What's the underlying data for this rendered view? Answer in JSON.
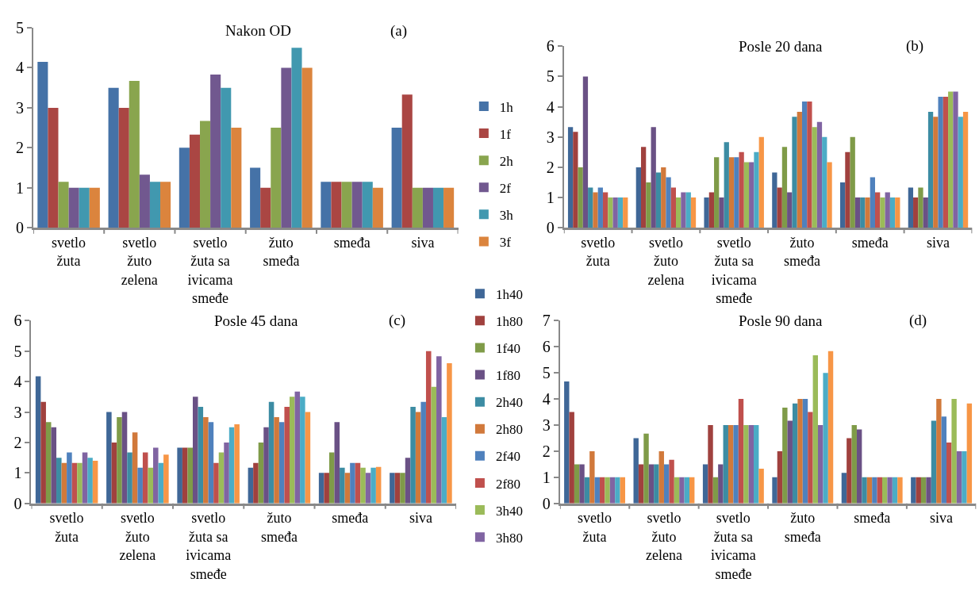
{
  "chart_data": [
    {
      "type": "bar",
      "title": "Nakon OD",
      "annotations": [
        "(a)"
      ],
      "categories": [
        "svetlo žuta",
        "svetlo žuto zelena",
        "svetlo žuta sa ivicama smeđe",
        "žuto smeđa",
        "smeđa",
        "siva"
      ],
      "ylim": [
        0,
        5
      ],
      "yticks": [
        0,
        1,
        2,
        3,
        4,
        5
      ],
      "legend": "right",
      "series": [
        {
          "name": "1h",
          "color": "#4572a7",
          "values": [
            4.15,
            3.5,
            2,
            1.5,
            1.15,
            2.5
          ]
        },
        {
          "name": "1f",
          "color": "#aa4643",
          "values": [
            3,
            3,
            2.33,
            1,
            1.15,
            3.33
          ]
        },
        {
          "name": "2h",
          "color": "#89a54e",
          "values": [
            1.15,
            3.67,
            2.67,
            2.5,
            1.15,
            1
          ]
        },
        {
          "name": "2f",
          "color": "#71588f",
          "values": [
            1,
            1.33,
            3.83,
            4,
            1.15,
            1
          ]
        },
        {
          "name": "3h",
          "color": "#4198af",
          "values": [
            1,
            1.15,
            3.5,
            4.5,
            1.15,
            1
          ]
        },
        {
          "name": "3f",
          "color": "#db843d",
          "values": [
            1,
            1.15,
            2.5,
            4,
            1,
            1
          ]
        }
      ]
    },
    {
      "type": "bar",
      "title": "Posle 20 dana",
      "annotations": [
        "(b)"
      ],
      "categories": [
        "svetlo žuta",
        "svetlo žuto zelena",
        "svetlo žuta sa ivicama smeđe",
        "žuto smeđa",
        "smeđa",
        "siva"
      ],
      "ylim": [
        0,
        6
      ],
      "yticks": [
        0,
        1,
        2,
        3,
        4,
        5,
        6
      ],
      "series": [
        {
          "color": "#3f6797",
          "values": [
            3.33,
            2,
            1,
            1.83,
            1.5,
            1.33
          ]
        },
        {
          "color": "#a0413e",
          "values": [
            3.17,
            2.67,
            1.17,
            1.33,
            2.5,
            1
          ]
        },
        {
          "color": "#7f9b48",
          "values": [
            2,
            1.5,
            2.33,
            2.67,
            3,
            1.33
          ]
        },
        {
          "color": "#6a5185",
          "values": [
            5,
            3.33,
            1,
            1.17,
            1,
            1
          ]
        },
        {
          "color": "#3c8ca3",
          "values": [
            1.33,
            1.83,
            2.83,
            3.67,
            1,
            3.83
          ]
        },
        {
          "color": "#d1793b",
          "values": [
            1.17,
            2,
            2.33,
            3.83,
            1,
            3.67
          ]
        },
        {
          "color": "#4f81bd",
          "values": [
            1.33,
            1.67,
            2.33,
            4.17,
            1.67,
            4.33
          ]
        },
        {
          "color": "#c0504d",
          "values": [
            1.17,
            1.33,
            2.5,
            4.17,
            1.17,
            4.33
          ]
        },
        {
          "color": "#9bbb59",
          "values": [
            1,
            1,
            2.17,
            3.33,
            1,
            4.5
          ]
        },
        {
          "color": "#8064a2",
          "values": [
            1,
            1.17,
            2.17,
            3.5,
            1.17,
            4.5
          ]
        },
        {
          "color": "#4bacc6",
          "values": [
            1,
            1.17,
            2.5,
            3,
            1,
            3.67
          ]
        },
        {
          "color": "#f79646",
          "values": [
            1,
            1,
            3,
            2.17,
            1,
            3.83
          ]
        }
      ]
    },
    {
      "type": "bar",
      "title": "Posle 45 dana",
      "annotations": [
        "(c)"
      ],
      "categories": [
        "svetlo žuta",
        "svetlo žuto zelena",
        "svetlo žuta sa ivicama smeđe",
        "žuto smeđa",
        "smeđa",
        "siva"
      ],
      "ylim": [
        0,
        6
      ],
      "yticks": [
        0,
        1,
        2,
        3,
        4,
        5,
        6
      ],
      "legend": "right",
      "series": [
        {
          "name": "1h40",
          "color": "#3f6797",
          "values": [
            4.17,
            3,
            1.83,
            1.17,
            1,
            1
          ]
        },
        {
          "name": "1h80",
          "color": "#a0413e",
          "values": [
            3.33,
            2,
            1.83,
            1.33,
            1,
            1
          ]
        },
        {
          "name": "1f40",
          "color": "#7f9b48",
          "values": [
            2.67,
            2.83,
            1.83,
            2,
            1.67,
            1
          ]
        },
        {
          "name": "1f80",
          "color": "#6a5185",
          "values": [
            2.5,
            3,
            3.5,
            2.5,
            2.67,
            1.5
          ]
        },
        {
          "name": "2h40",
          "color": "#3c8ca3",
          "values": [
            1.5,
            1.67,
            3.17,
            3.33,
            1.17,
            3.17
          ]
        },
        {
          "name": "2h80",
          "color": "#d1793b",
          "values": [
            1.33,
            2.33,
            2.83,
            2.83,
            1,
            3
          ]
        },
        {
          "name": "2f40",
          "color": "#4f81bd",
          "values": [
            1.67,
            1.17,
            2.67,
            2.67,
            1.33,
            3.33
          ]
        },
        {
          "name": "2f80",
          "color": "#c0504d",
          "values": [
            1.33,
            1.67,
            1.33,
            3.17,
            1.33,
            5
          ]
        },
        {
          "name": "3h40",
          "color": "#9bbb59",
          "values": [
            1.33,
            1.17,
            1.67,
            3.5,
            1.17,
            3.83
          ]
        },
        {
          "name": "3h80",
          "color": "#8064a2",
          "values": [
            1.67,
            1.83,
            2,
            3.67,
            1,
            4.83
          ]
        },
        {
          "color": "#4bacc6",
          "values": [
            1.5,
            1.33,
            2.5,
            3.5,
            1.17,
            2.83
          ]
        },
        {
          "color": "#f79646",
          "values": [
            1.4,
            1.6,
            2.6,
            3,
            1.2,
            4.6
          ]
        }
      ]
    },
    {
      "type": "bar",
      "title": "Posle 90 dana",
      "annotations": [
        "(d)"
      ],
      "categories": [
        "svetlo žuta",
        "svetlo žuto zelena",
        "svetlo žuta sa ivicama smeđe",
        "žuto smeđa",
        "smeđa",
        "siva"
      ],
      "ylim": [
        0,
        7
      ],
      "yticks": [
        0,
        1,
        2,
        3,
        4,
        5,
        6,
        7
      ],
      "series": [
        {
          "color": "#3f6797",
          "values": [
            4.67,
            2.5,
            1.5,
            1,
            1.17,
            1
          ]
        },
        {
          "color": "#a0413e",
          "values": [
            3.5,
            1.5,
            3,
            2,
            2.5,
            1
          ]
        },
        {
          "color": "#7f9b48",
          "values": [
            1.5,
            2.67,
            1,
            3.67,
            3,
            1
          ]
        },
        {
          "color": "#6a5185",
          "values": [
            1.5,
            1.5,
            1.5,
            3.17,
            2.83,
            1
          ]
        },
        {
          "color": "#3c8ca3",
          "values": [
            1,
            1.5,
            3,
            3.83,
            1,
            3.17
          ]
        },
        {
          "color": "#d1793b",
          "values": [
            2,
            2,
            3,
            4,
            1,
            4
          ]
        },
        {
          "color": "#4f81bd",
          "values": [
            1,
            1.5,
            3,
            4,
            1,
            3.33
          ]
        },
        {
          "color": "#c0504d",
          "values": [
            1,
            1.67,
            4,
            3.5,
            1,
            2.33
          ]
        },
        {
          "color": "#9bbb59",
          "values": [
            1,
            1,
            3,
            5.67,
            1,
            4
          ]
        },
        {
          "color": "#8064a2",
          "values": [
            1,
            1,
            3,
            3,
            1,
            2
          ]
        },
        {
          "color": "#4bacc6",
          "values": [
            1,
            1,
            3,
            5,
            1,
            2
          ]
        },
        {
          "color": "#f79646",
          "values": [
            1,
            1,
            1.33,
            5.83,
            1,
            3.83
          ]
        }
      ]
    }
  ]
}
